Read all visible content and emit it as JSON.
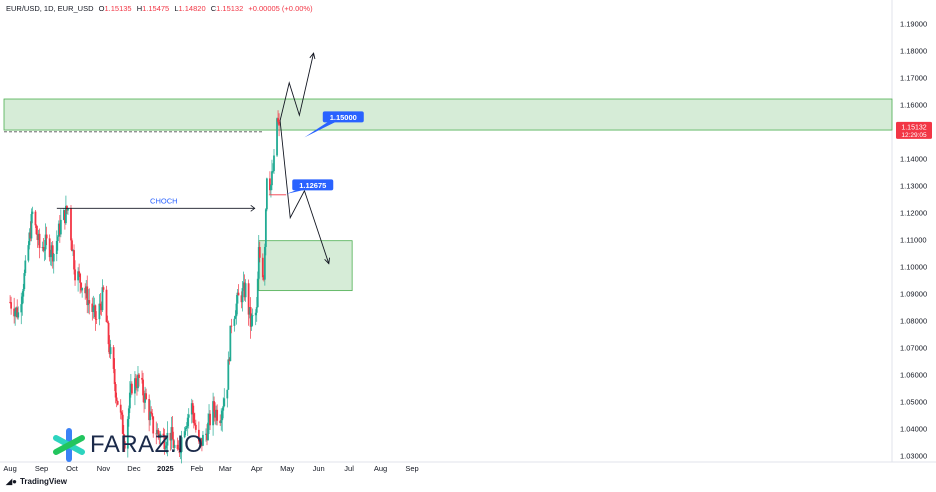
{
  "header": {
    "symbol": "EUR/USD, 1D, EUR_USD",
    "open_label": "O",
    "open": "1.15135",
    "high_label": "H",
    "high": "1.15475",
    "low_label": "L",
    "low": "1.14820",
    "close_label": "C",
    "close": "1.15132",
    "change": "+0.00005 (+0.00%)"
  },
  "footer": {
    "brand": "TradingView"
  },
  "logo": {
    "text": "FARAZ.IO"
  },
  "colors": {
    "up": "#22ab94",
    "down": "#f23645",
    "zone": "#c8e6c9",
    "zone_border": "#4caf50",
    "label_blue": "#2962ff",
    "price_tag": "#f23645"
  },
  "chart_data": {
    "type": "candlestick",
    "symbol": "EUR/USD",
    "interval": "1D",
    "x_ticks": [
      "Aug",
      "Sep",
      "Oct",
      "Nov",
      "Dec",
      "2025",
      "Feb",
      "Mar",
      "Apr",
      "May",
      "Jun",
      "Jul",
      "Aug",
      "Sep"
    ],
    "y_ticks": [
      "1.19000",
      "1.18000",
      "1.17000",
      "1.16000",
      "1.15000",
      "1.14000",
      "1.13000",
      "1.12000",
      "1.11000",
      "1.10000",
      "1.09000",
      "1.08000",
      "1.07000",
      "1.06000",
      "1.05000",
      "1.04000",
      "1.03000"
    ],
    "ylim": [
      1.0275,
      1.1935
    ],
    "current_price": "1.15132",
    "countdown": "12:29:05",
    "close_path": [
      [
        "2024-08-01",
        1.0868
      ],
      [
        "2024-08-09",
        1.0825
      ],
      [
        "2024-08-16",
        1.0985
      ],
      [
        "2024-08-23",
        1.1195
      ],
      [
        "2024-08-30",
        1.1068
      ],
      [
        "2024-09-06",
        1.1085
      ],
      [
        "2024-09-13",
        1.105
      ],
      [
        "2024-09-20",
        1.116
      ],
      [
        "2024-09-27",
        1.1215
      ],
      [
        "2024-10-04",
        1.0985
      ],
      [
        "2024-10-11",
        1.0935
      ],
      [
        "2024-10-18",
        1.0865
      ],
      [
        "2024-10-25",
        1.08
      ],
      [
        "2024-11-01",
        1.09
      ],
      [
        "2024-11-06",
        1.072
      ],
      [
        "2024-11-14",
        1.052
      ],
      [
        "2024-11-22",
        1.036
      ],
      [
        "2024-11-29",
        1.056
      ],
      [
        "2024-12-06",
        1.058
      ],
      [
        "2024-12-13",
        1.05
      ],
      [
        "2024-12-20",
        1.04
      ],
      [
        "2024-12-31",
        1.036
      ],
      [
        "2025-01-06",
        1.038
      ],
      [
        "2025-01-13",
        1.029
      ],
      [
        "2025-01-20",
        1.042
      ],
      [
        "2025-01-27",
        1.048
      ],
      [
        "2025-02-03",
        1.033
      ],
      [
        "2025-02-10",
        1.038
      ],
      [
        "2025-02-17",
        1.047
      ],
      [
        "2025-02-24",
        1.045
      ],
      [
        "2025-03-03",
        1.057
      ],
      [
        "2025-03-07",
        1.08
      ],
      [
        "2025-03-14",
        1.088
      ],
      [
        "2025-03-21",
        1.0915
      ],
      [
        "2025-03-26",
        1.079
      ],
      [
        "2025-04-01",
        1.083
      ],
      [
        "2025-04-03",
        1.105
      ],
      [
        "2025-04-08",
        1.097
      ],
      [
        "2025-04-11",
        1.135
      ],
      [
        "2025-04-15",
        1.13
      ],
      [
        "2025-04-18",
        1.138
      ],
      [
        "2025-04-21",
        1.155
      ],
      [
        "2025-04-23",
        1.15
      ]
    ],
    "annotations": {
      "supply_zone": {
        "from": "2024-07-26",
        "to": "2025-09-30",
        "low": 1.1505,
        "high": 1.162
      },
      "demand_zone": {
        "from": "2025-04-03",
        "to": "2025-07-04",
        "low": 1.091,
        "high": 1.1095
      },
      "choch": {
        "label": "CHOCH",
        "price": 1.1215,
        "from": "2024-09-20",
        "to": "2025-04-01"
      },
      "label_high": {
        "text": "1.15000",
        "price": 1.15
      },
      "label_mid": {
        "text": "1.12675",
        "price": 1.12675
      },
      "scenario_up": [
        [
          "2025-04-24",
          1.154
        ],
        [
          "2025-05-03",
          1.168
        ],
        [
          "2025-05-13",
          1.156
        ],
        [
          "2025-05-27",
          1.179
        ]
      ],
      "scenario_down": [
        [
          "2025-04-24",
          1.154
        ],
        [
          "2025-05-04",
          1.118
        ],
        [
          "2025-05-18",
          1.128
        ],
        [
          "2025-06-11",
          1.101
        ]
      ]
    }
  }
}
